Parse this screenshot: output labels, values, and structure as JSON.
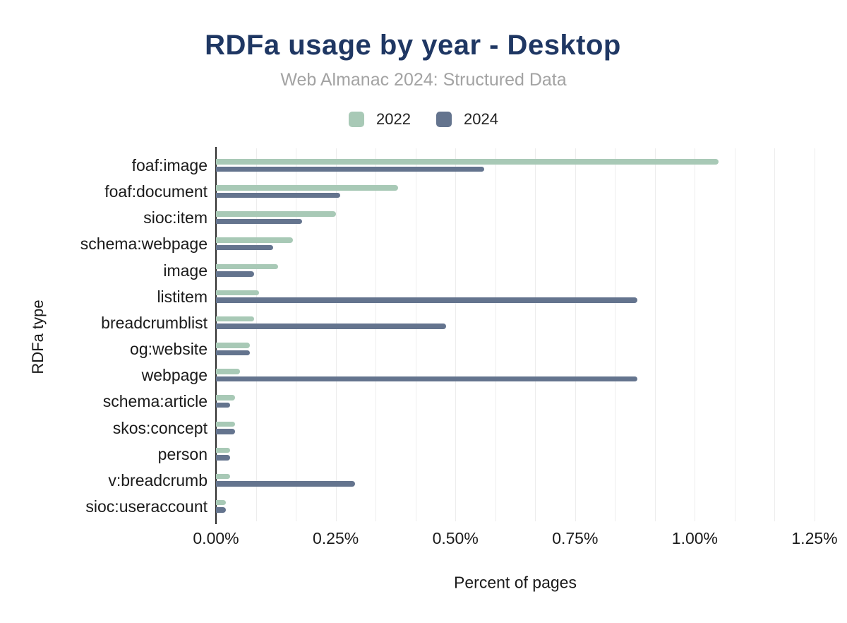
{
  "chart_data": {
    "type": "bar",
    "orientation": "horizontal",
    "title": "RDFa usage by year - Desktop",
    "subtitle": "Web Almanac 2024: Structured Data",
    "xlabel": "Percent of pages",
    "ylabel": "RDFa type",
    "value_unit": "percent of pages",
    "xlim": [
      0,
      1.25
    ],
    "x_tick_labels": [
      "0.00%",
      "0.25%",
      "0.50%",
      "0.75%",
      "1.00%",
      "1.25%"
    ],
    "x_tick_values": [
      0,
      0.25,
      0.5,
      0.75,
      1.0,
      1.25
    ],
    "grid": "vertical light gridlines, 3 per major tick interval",
    "legend_position": "top-center",
    "categories": [
      "foaf:image",
      "foaf:document",
      "sioc:item",
      "schema:webpage",
      "image",
      "listitem",
      "breadcrumblist",
      "og:website",
      "webpage",
      "schema:article",
      "skos:concept",
      "person",
      "v:breadcrumb",
      "sioc:useraccount"
    ],
    "series": [
      {
        "name": "2022",
        "color": "#a8c9b6",
        "values": [
          1.05,
          0.38,
          0.25,
          0.16,
          0.13,
          0.09,
          0.08,
          0.07,
          0.05,
          0.04,
          0.04,
          0.03,
          0.03,
          0.02
        ]
      },
      {
        "name": "2024",
        "color": "#64748e",
        "values": [
          0.56,
          0.26,
          0.18,
          0.12,
          0.08,
          0.88,
          0.48,
          0.07,
          0.88,
          0.03,
          0.04,
          0.03,
          0.29,
          0.02
        ]
      }
    ]
  },
  "colors": {
    "title": "#1f3763",
    "subtitle": "#a3a3a3",
    "series_2022": "#a8c9b6",
    "series_2024": "#64748e",
    "gridline": "#ededed",
    "axis_line": "#2b2b2b",
    "label_text": "#1a1a1a",
    "background": "#ffffff"
  }
}
